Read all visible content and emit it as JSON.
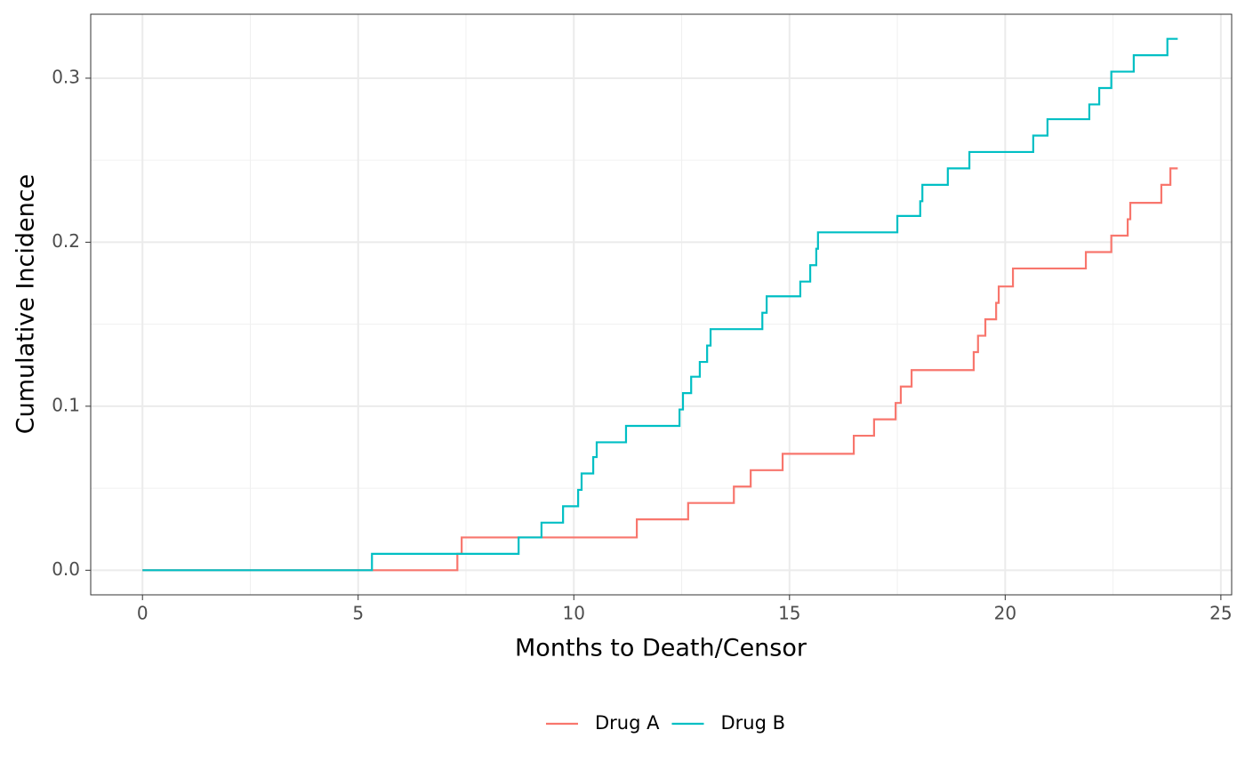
{
  "chart_data": {
    "type": "step",
    "xlabel": "Months to Death/Censor",
    "ylabel": "Cumulative Incidence",
    "xlim": [
      -1.2,
      25.25
    ],
    "ylim": [
      -0.015,
      0.339
    ],
    "xticks": [
      0,
      5,
      10,
      15,
      20,
      25
    ],
    "yticks": [
      {
        "value": 0,
        "label": "0.0"
      },
      {
        "value": 0.1,
        "label": "0.1"
      },
      {
        "value": 0.2,
        "label": "0.2"
      },
      {
        "value": 0.3,
        "label": "0.3"
      }
    ],
    "grid": true,
    "legend": "bottom",
    "series": [
      {
        "name": "Drug A",
        "color": "#F8766D",
        "x": [
          0,
          7.3,
          7.4,
          11.46,
          12.65,
          13.71,
          14.1,
          14.84,
          16.49,
          16.96,
          17.46,
          17.58,
          17.83,
          19.27,
          19.37,
          19.54,
          19.79,
          19.85,
          20.18,
          21.87,
          22.46,
          22.84,
          22.9,
          23.62,
          23.83,
          24.0
        ],
        "values": [
          0,
          0.01,
          0.02,
          0.031,
          0.041,
          0.051,
          0.061,
          0.071,
          0.082,
          0.092,
          0.102,
          0.112,
          0.122,
          0.133,
          0.143,
          0.153,
          0.163,
          0.173,
          0.184,
          0.194,
          0.204,
          0.214,
          0.224,
          0.235,
          0.245,
          0.245
        ]
      },
      {
        "name": "Drug B",
        "color": "#00BFC4",
        "x": [
          0,
          5.32,
          8.72,
          9.25,
          9.75,
          10.1,
          10.18,
          10.45,
          10.53,
          11.21,
          12.45,
          12.53,
          12.72,
          12.92,
          13.09,
          13.17,
          14.37,
          14.47,
          15.25,
          15.48,
          15.62,
          15.66,
          17.5,
          18.03,
          18.08,
          18.67,
          19.17,
          20.65,
          20.98,
          21.95,
          22.18,
          22.46,
          22.98,
          23.76,
          24.0
        ],
        "values": [
          0,
          0.01,
          0.02,
          0.029,
          0.039,
          0.049,
          0.059,
          0.069,
          0.078,
          0.088,
          0.098,
          0.108,
          0.118,
          0.127,
          0.137,
          0.147,
          0.157,
          0.167,
          0.176,
          0.186,
          0.196,
          0.206,
          0.216,
          0.225,
          0.235,
          0.245,
          0.255,
          0.265,
          0.275,
          0.284,
          0.294,
          0.304,
          0.314,
          0.324,
          0.324
        ]
      }
    ]
  }
}
